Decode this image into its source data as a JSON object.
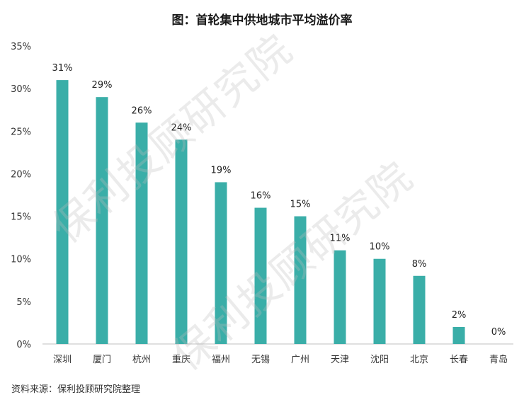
{
  "chart_data": {
    "type": "bar",
    "title": "图：首轮集中供地城市平均溢价率",
    "categories": [
      "深圳",
      "厦门",
      "杭州",
      "重庆",
      "福州",
      "无锡",
      "广州",
      "天津",
      "沈阳",
      "北京",
      "长春",
      "青岛"
    ],
    "values": [
      31,
      29,
      26,
      24,
      19,
      16,
      15,
      11,
      10,
      8,
      2,
      0
    ],
    "value_labels": [
      "31%",
      "29%",
      "26%",
      "24%",
      "19%",
      "16%",
      "15%",
      "11%",
      "10%",
      "8%",
      "2%",
      "0%"
    ],
    "y_ticks": [
      "0%",
      "5%",
      "10%",
      "15%",
      "20%",
      "25%",
      "30%",
      "35%"
    ],
    "ylim": [
      0,
      35
    ],
    "xlabel": "",
    "ylabel": "",
    "grid": false,
    "bar_color": "#3aaea8"
  },
  "source": "资料来源：保利投顾研究院整理",
  "watermark": "保利投顾研究院"
}
